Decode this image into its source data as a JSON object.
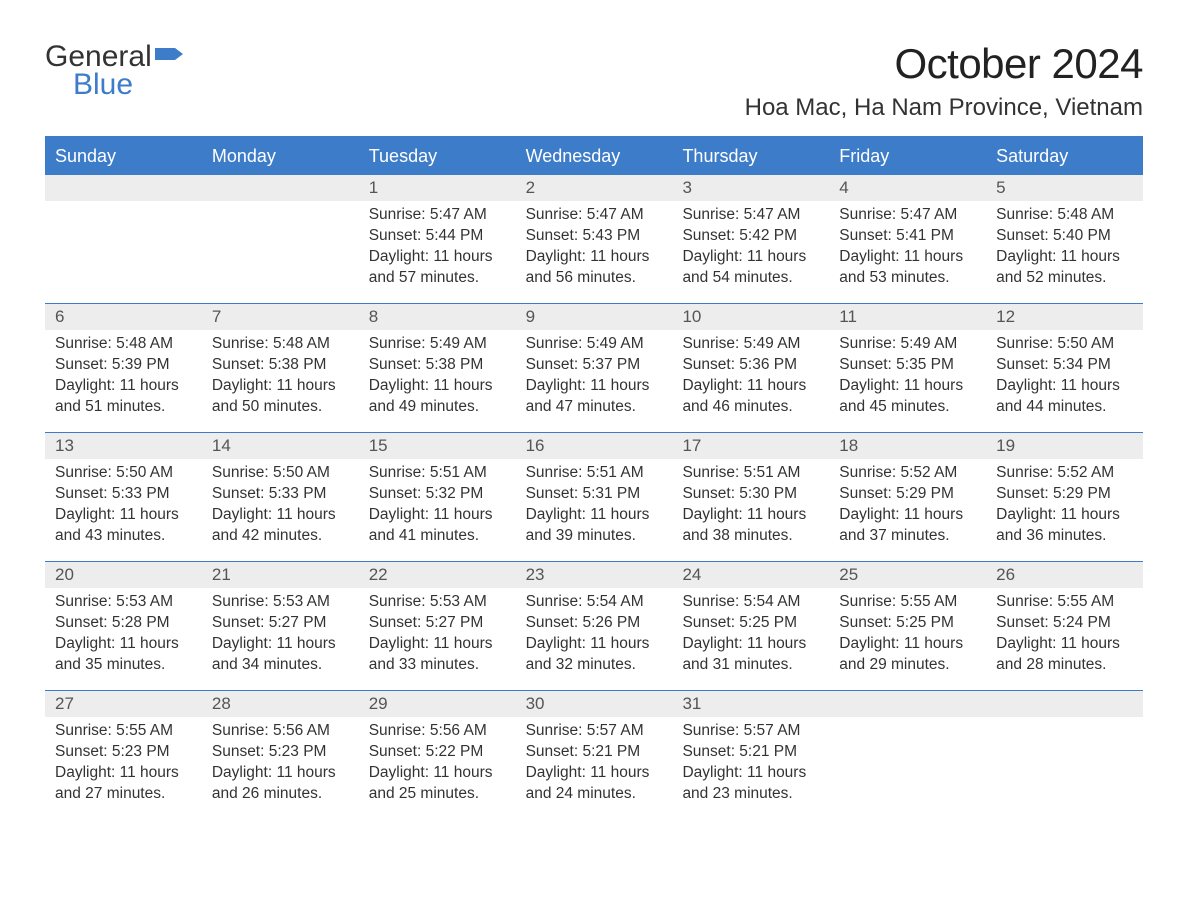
{
  "brand": {
    "text1": "General",
    "text2": "Blue",
    "flag_color": "#3d7cc9"
  },
  "title": "October 2024",
  "location": "Hoa Mac, Ha Nam Province, Vietnam",
  "colors": {
    "header_bg": "#3d7cc9",
    "daynum_bg": "#ededed",
    "border": "#3d7cc9",
    "text": "#333333",
    "white": "#ffffff"
  },
  "weekdays": [
    "Sunday",
    "Monday",
    "Tuesday",
    "Wednesday",
    "Thursday",
    "Friday",
    "Saturday"
  ],
  "weeks": [
    [
      null,
      null,
      {
        "n": "1",
        "sunrise": "5:47 AM",
        "sunset": "5:44 PM",
        "daylight": "11 hours and 57 minutes."
      },
      {
        "n": "2",
        "sunrise": "5:47 AM",
        "sunset": "5:43 PM",
        "daylight": "11 hours and 56 minutes."
      },
      {
        "n": "3",
        "sunrise": "5:47 AM",
        "sunset": "5:42 PM",
        "daylight": "11 hours and 54 minutes."
      },
      {
        "n": "4",
        "sunrise": "5:47 AM",
        "sunset": "5:41 PM",
        "daylight": "11 hours and 53 minutes."
      },
      {
        "n": "5",
        "sunrise": "5:48 AM",
        "sunset": "5:40 PM",
        "daylight": "11 hours and 52 minutes."
      }
    ],
    [
      {
        "n": "6",
        "sunrise": "5:48 AM",
        "sunset": "5:39 PM",
        "daylight": "11 hours and 51 minutes."
      },
      {
        "n": "7",
        "sunrise": "5:48 AM",
        "sunset": "5:38 PM",
        "daylight": "11 hours and 50 minutes."
      },
      {
        "n": "8",
        "sunrise": "5:49 AM",
        "sunset": "5:38 PM",
        "daylight": "11 hours and 49 minutes."
      },
      {
        "n": "9",
        "sunrise": "5:49 AM",
        "sunset": "5:37 PM",
        "daylight": "11 hours and 47 minutes."
      },
      {
        "n": "10",
        "sunrise": "5:49 AM",
        "sunset": "5:36 PM",
        "daylight": "11 hours and 46 minutes."
      },
      {
        "n": "11",
        "sunrise": "5:49 AM",
        "sunset": "5:35 PM",
        "daylight": "11 hours and 45 minutes."
      },
      {
        "n": "12",
        "sunrise": "5:50 AM",
        "sunset": "5:34 PM",
        "daylight": "11 hours and 44 minutes."
      }
    ],
    [
      {
        "n": "13",
        "sunrise": "5:50 AM",
        "sunset": "5:33 PM",
        "daylight": "11 hours and 43 minutes."
      },
      {
        "n": "14",
        "sunrise": "5:50 AM",
        "sunset": "5:33 PM",
        "daylight": "11 hours and 42 minutes."
      },
      {
        "n": "15",
        "sunrise": "5:51 AM",
        "sunset": "5:32 PM",
        "daylight": "11 hours and 41 minutes."
      },
      {
        "n": "16",
        "sunrise": "5:51 AM",
        "sunset": "5:31 PM",
        "daylight": "11 hours and 39 minutes."
      },
      {
        "n": "17",
        "sunrise": "5:51 AM",
        "sunset": "5:30 PM",
        "daylight": "11 hours and 38 minutes."
      },
      {
        "n": "18",
        "sunrise": "5:52 AM",
        "sunset": "5:29 PM",
        "daylight": "11 hours and 37 minutes."
      },
      {
        "n": "19",
        "sunrise": "5:52 AM",
        "sunset": "5:29 PM",
        "daylight": "11 hours and 36 minutes."
      }
    ],
    [
      {
        "n": "20",
        "sunrise": "5:53 AM",
        "sunset": "5:28 PM",
        "daylight": "11 hours and 35 minutes."
      },
      {
        "n": "21",
        "sunrise": "5:53 AM",
        "sunset": "5:27 PM",
        "daylight": "11 hours and 34 minutes."
      },
      {
        "n": "22",
        "sunrise": "5:53 AM",
        "sunset": "5:27 PM",
        "daylight": "11 hours and 33 minutes."
      },
      {
        "n": "23",
        "sunrise": "5:54 AM",
        "sunset": "5:26 PM",
        "daylight": "11 hours and 32 minutes."
      },
      {
        "n": "24",
        "sunrise": "5:54 AM",
        "sunset": "5:25 PM",
        "daylight": "11 hours and 31 minutes."
      },
      {
        "n": "25",
        "sunrise": "5:55 AM",
        "sunset": "5:25 PM",
        "daylight": "11 hours and 29 minutes."
      },
      {
        "n": "26",
        "sunrise": "5:55 AM",
        "sunset": "5:24 PM",
        "daylight": "11 hours and 28 minutes."
      }
    ],
    [
      {
        "n": "27",
        "sunrise": "5:55 AM",
        "sunset": "5:23 PM",
        "daylight": "11 hours and 27 minutes."
      },
      {
        "n": "28",
        "sunrise": "5:56 AM",
        "sunset": "5:23 PM",
        "daylight": "11 hours and 26 minutes."
      },
      {
        "n": "29",
        "sunrise": "5:56 AM",
        "sunset": "5:22 PM",
        "daylight": "11 hours and 25 minutes."
      },
      {
        "n": "30",
        "sunrise": "5:57 AM",
        "sunset": "5:21 PM",
        "daylight": "11 hours and 24 minutes."
      },
      {
        "n": "31",
        "sunrise": "5:57 AM",
        "sunset": "5:21 PM",
        "daylight": "11 hours and 23 minutes."
      },
      null,
      null
    ]
  ],
  "labels": {
    "sunrise_prefix": "Sunrise: ",
    "sunset_prefix": "Sunset: ",
    "daylight_prefix": "Daylight: "
  }
}
